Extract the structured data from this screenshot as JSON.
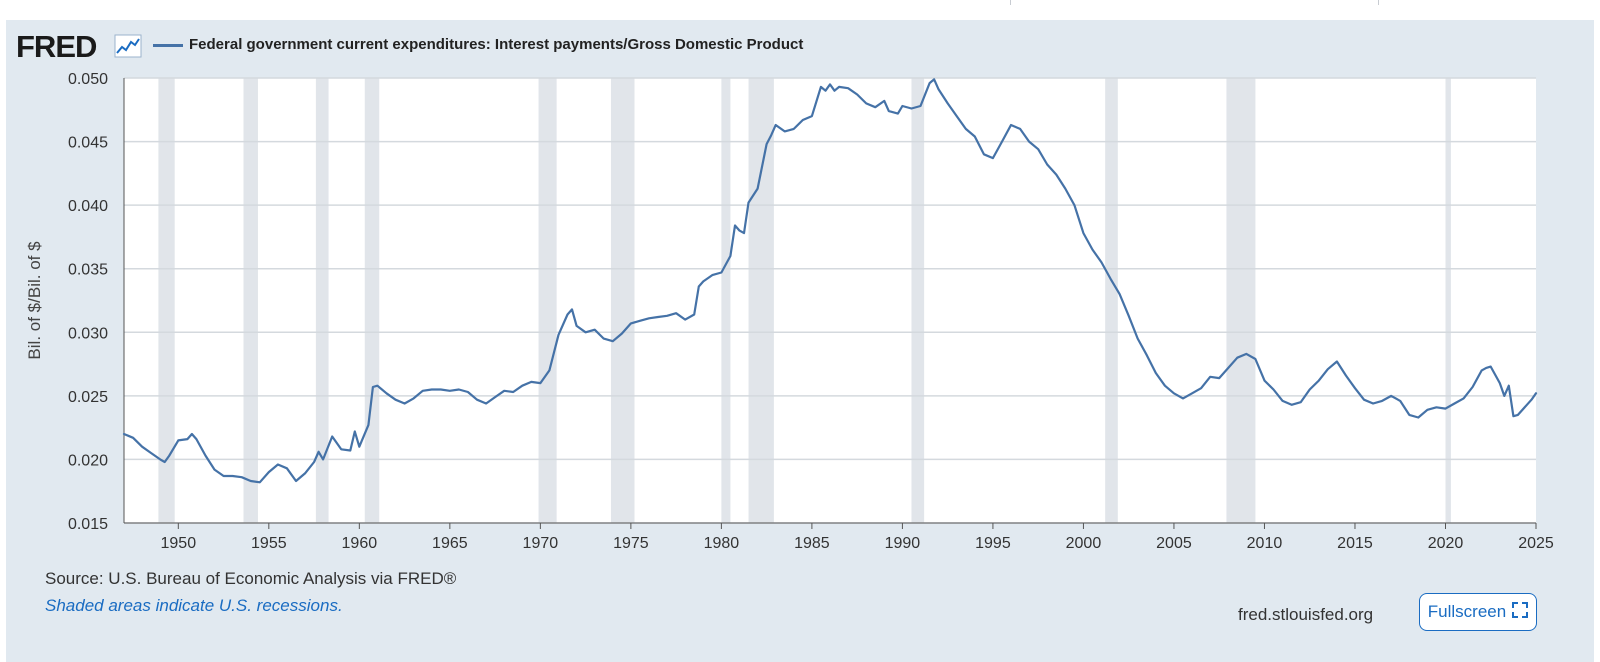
{
  "brand": {
    "logo_text": "FRED",
    "graph_icon": "line-chart-icon"
  },
  "legend": {
    "series_name": "Federal government current expenditures: Interest payments/Gross Domestic Product",
    "color": "#4572a7"
  },
  "footer": {
    "source": "Source: U.S. Bureau of Economic Analysis via FRED®",
    "recession_note": "Shaded areas indicate U.S. recessions.",
    "site": "fred.stlouisfed.org",
    "fullscreen_label": "Fullscreen",
    "fullscreen_icon": "expand-icon"
  },
  "colors": {
    "panel_bg": "#e1e9f0",
    "plot_bg": "#ffffff",
    "line": "#4572a7",
    "recession": "#e1e5ea",
    "link": "#1a6cc2"
  },
  "chart_data": {
    "type": "line",
    "title": "",
    "xlabel": "",
    "ylabel": "Bil. of $/Bil. of $",
    "xlim": [
      1947,
      2025
    ],
    "ylim": [
      0.015,
      0.05
    ],
    "grid": true,
    "x_ticks": [
      "1950",
      "1955",
      "1960",
      "1965",
      "1970",
      "1975",
      "1980",
      "1985",
      "1990",
      "1995",
      "2000",
      "2005",
      "2010",
      "2015",
      "2020",
      "2025"
    ],
    "y_ticks": [
      "0.015",
      "0.020",
      "0.025",
      "0.030",
      "0.035",
      "0.040",
      "0.045",
      "0.050"
    ],
    "recessions": [
      [
        1948.9,
        1949.8
      ],
      [
        1953.6,
        1954.4
      ],
      [
        1957.6,
        1958.3
      ],
      [
        1960.3,
        1961.1
      ],
      [
        1969.9,
        1970.9
      ],
      [
        1973.9,
        1975.2
      ],
      [
        1980.0,
        1980.5
      ],
      [
        1981.5,
        1982.9
      ],
      [
        1990.5,
        1991.2
      ],
      [
        2001.2,
        2001.9
      ],
      [
        2007.9,
        2009.5
      ],
      [
        2020.0,
        2020.3
      ]
    ],
    "series": [
      {
        "name": "Federal government current expenditures: Interest payments/Gross Domestic Product",
        "points": [
          [
            1947.0,
            0.022
          ],
          [
            1947.5,
            0.0217
          ],
          [
            1948.0,
            0.021
          ],
          [
            1948.5,
            0.0205
          ],
          [
            1949.0,
            0.02
          ],
          [
            1949.25,
            0.0198
          ],
          [
            1949.5,
            0.0203
          ],
          [
            1950.0,
            0.0215
          ],
          [
            1950.5,
            0.0216
          ],
          [
            1950.75,
            0.022
          ],
          [
            1951.0,
            0.0216
          ],
          [
            1951.5,
            0.0203
          ],
          [
            1952.0,
            0.0192
          ],
          [
            1952.5,
            0.0187
          ],
          [
            1953.0,
            0.0187
          ],
          [
            1953.5,
            0.0186
          ],
          [
            1954.0,
            0.0183
          ],
          [
            1954.5,
            0.0182
          ],
          [
            1955.0,
            0.019
          ],
          [
            1955.5,
            0.0196
          ],
          [
            1956.0,
            0.0193
          ],
          [
            1956.5,
            0.0183
          ],
          [
            1957.0,
            0.0189
          ],
          [
            1957.5,
            0.0198
          ],
          [
            1957.75,
            0.0206
          ],
          [
            1958.0,
            0.02
          ],
          [
            1958.5,
            0.0218
          ],
          [
            1959.0,
            0.0208
          ],
          [
            1959.5,
            0.0207
          ],
          [
            1959.75,
            0.0222
          ],
          [
            1960.0,
            0.021
          ],
          [
            1960.5,
            0.0227
          ],
          [
            1960.75,
            0.0257
          ],
          [
            1961.0,
            0.0258
          ],
          [
            1961.5,
            0.0252
          ],
          [
            1962.0,
            0.0247
          ],
          [
            1962.5,
            0.0244
          ],
          [
            1963.0,
            0.0248
          ],
          [
            1963.5,
            0.0254
          ],
          [
            1964.0,
            0.0255
          ],
          [
            1964.5,
            0.0255
          ],
          [
            1965.0,
            0.0254
          ],
          [
            1965.5,
            0.0255
          ],
          [
            1966.0,
            0.0253
          ],
          [
            1966.5,
            0.0247
          ],
          [
            1967.0,
            0.0244
          ],
          [
            1967.5,
            0.0249
          ],
          [
            1968.0,
            0.0254
          ],
          [
            1968.5,
            0.0253
          ],
          [
            1969.0,
            0.0258
          ],
          [
            1969.5,
            0.0261
          ],
          [
            1970.0,
            0.026
          ],
          [
            1970.5,
            0.027
          ],
          [
            1971.0,
            0.0298
          ],
          [
            1971.5,
            0.0314
          ],
          [
            1971.75,
            0.0318
          ],
          [
            1972.0,
            0.0305
          ],
          [
            1972.5,
            0.03
          ],
          [
            1973.0,
            0.0302
          ],
          [
            1973.5,
            0.0295
          ],
          [
            1974.0,
            0.0293
          ],
          [
            1974.5,
            0.0299
          ],
          [
            1975.0,
            0.0307
          ],
          [
            1975.5,
            0.0309
          ],
          [
            1976.0,
            0.0311
          ],
          [
            1976.5,
            0.0312
          ],
          [
            1977.0,
            0.0313
          ],
          [
            1977.5,
            0.0315
          ],
          [
            1978.0,
            0.031
          ],
          [
            1978.5,
            0.0314
          ],
          [
            1978.75,
            0.0336
          ],
          [
            1979.0,
            0.034
          ],
          [
            1979.5,
            0.0345
          ],
          [
            1980.0,
            0.0347
          ],
          [
            1980.5,
            0.036
          ],
          [
            1980.75,
            0.0384
          ],
          [
            1981.0,
            0.038
          ],
          [
            1981.25,
            0.0378
          ],
          [
            1981.5,
            0.0402
          ],
          [
            1982.0,
            0.0413
          ],
          [
            1982.5,
            0.0448
          ],
          [
            1982.75,
            0.0455
          ],
          [
            1983.0,
            0.0463
          ],
          [
            1983.5,
            0.0458
          ],
          [
            1984.0,
            0.046
          ],
          [
            1984.5,
            0.0467
          ],
          [
            1985.0,
            0.047
          ],
          [
            1985.5,
            0.0493
          ],
          [
            1985.75,
            0.049
          ],
          [
            1986.0,
            0.0495
          ],
          [
            1986.25,
            0.049
          ],
          [
            1986.5,
            0.0493
          ],
          [
            1987.0,
            0.0492
          ],
          [
            1987.5,
            0.0487
          ],
          [
            1988.0,
            0.048
          ],
          [
            1988.5,
            0.0477
          ],
          [
            1989.0,
            0.0482
          ],
          [
            1989.25,
            0.0474
          ],
          [
            1989.75,
            0.0472
          ],
          [
            1990.0,
            0.0478
          ],
          [
            1990.5,
            0.0476
          ],
          [
            1991.0,
            0.0478
          ],
          [
            1991.5,
            0.0496
          ],
          [
            1991.75,
            0.0499
          ],
          [
            1992.0,
            0.0491
          ],
          [
            1992.5,
            0.048
          ],
          [
            1993.0,
            0.047
          ],
          [
            1993.5,
            0.046
          ],
          [
            1994.0,
            0.0454
          ],
          [
            1994.5,
            0.044
          ],
          [
            1995.0,
            0.0437
          ],
          [
            1995.5,
            0.045
          ],
          [
            1996.0,
            0.0463
          ],
          [
            1996.5,
            0.046
          ],
          [
            1997.0,
            0.045
          ],
          [
            1997.5,
            0.0444
          ],
          [
            1998.0,
            0.0432
          ],
          [
            1998.5,
            0.0424
          ],
          [
            1999.0,
            0.0413
          ],
          [
            1999.5,
            0.04
          ],
          [
            2000.0,
            0.0378
          ],
          [
            2000.5,
            0.0365
          ],
          [
            2001.0,
            0.0355
          ],
          [
            2001.5,
            0.0342
          ],
          [
            2002.0,
            0.033
          ],
          [
            2002.5,
            0.0313
          ],
          [
            2003.0,
            0.0295
          ],
          [
            2003.5,
            0.0282
          ],
          [
            2004.0,
            0.0268
          ],
          [
            2004.5,
            0.0258
          ],
          [
            2005.0,
            0.0252
          ],
          [
            2005.5,
            0.0248
          ],
          [
            2006.0,
            0.0252
          ],
          [
            2006.5,
            0.0256
          ],
          [
            2007.0,
            0.0265
          ],
          [
            2007.5,
            0.0264
          ],
          [
            2008.0,
            0.0272
          ],
          [
            2008.5,
            0.028
          ],
          [
            2009.0,
            0.0283
          ],
          [
            2009.5,
            0.0279
          ],
          [
            2010.0,
            0.0262
          ],
          [
            2010.5,
            0.0255
          ],
          [
            2011.0,
            0.0246
          ],
          [
            2011.5,
            0.0243
          ],
          [
            2012.0,
            0.0245
          ],
          [
            2012.5,
            0.0255
          ],
          [
            2013.0,
            0.0262
          ],
          [
            2013.5,
            0.0271
          ],
          [
            2014.0,
            0.0277
          ],
          [
            2014.5,
            0.0266
          ],
          [
            2015.0,
            0.0256
          ],
          [
            2015.5,
            0.0247
          ],
          [
            2016.0,
            0.0244
          ],
          [
            2016.5,
            0.0246
          ],
          [
            2017.0,
            0.025
          ],
          [
            2017.5,
            0.0246
          ],
          [
            2018.0,
            0.0235
          ],
          [
            2018.5,
            0.0233
          ],
          [
            2019.0,
            0.0239
          ],
          [
            2019.5,
            0.0241
          ],
          [
            2020.0,
            0.024
          ],
          [
            2020.5,
            0.0244
          ],
          [
            2021.0,
            0.0248
          ],
          [
            2021.5,
            0.0257
          ],
          [
            2022.0,
            0.027
          ],
          [
            2022.25,
            0.0272
          ],
          [
            2022.5,
            0.0273
          ],
          [
            2023.0,
            0.026
          ],
          [
            2023.25,
            0.025
          ],
          [
            2023.5,
            0.0258
          ],
          [
            2023.75,
            0.0234
          ],
          [
            2024.0,
            0.0235
          ],
          [
            2024.5,
            0.0243
          ],
          [
            2024.75,
            0.0247
          ],
          [
            2025.0,
            0.0252
          ]
        ]
      }
    ]
  }
}
